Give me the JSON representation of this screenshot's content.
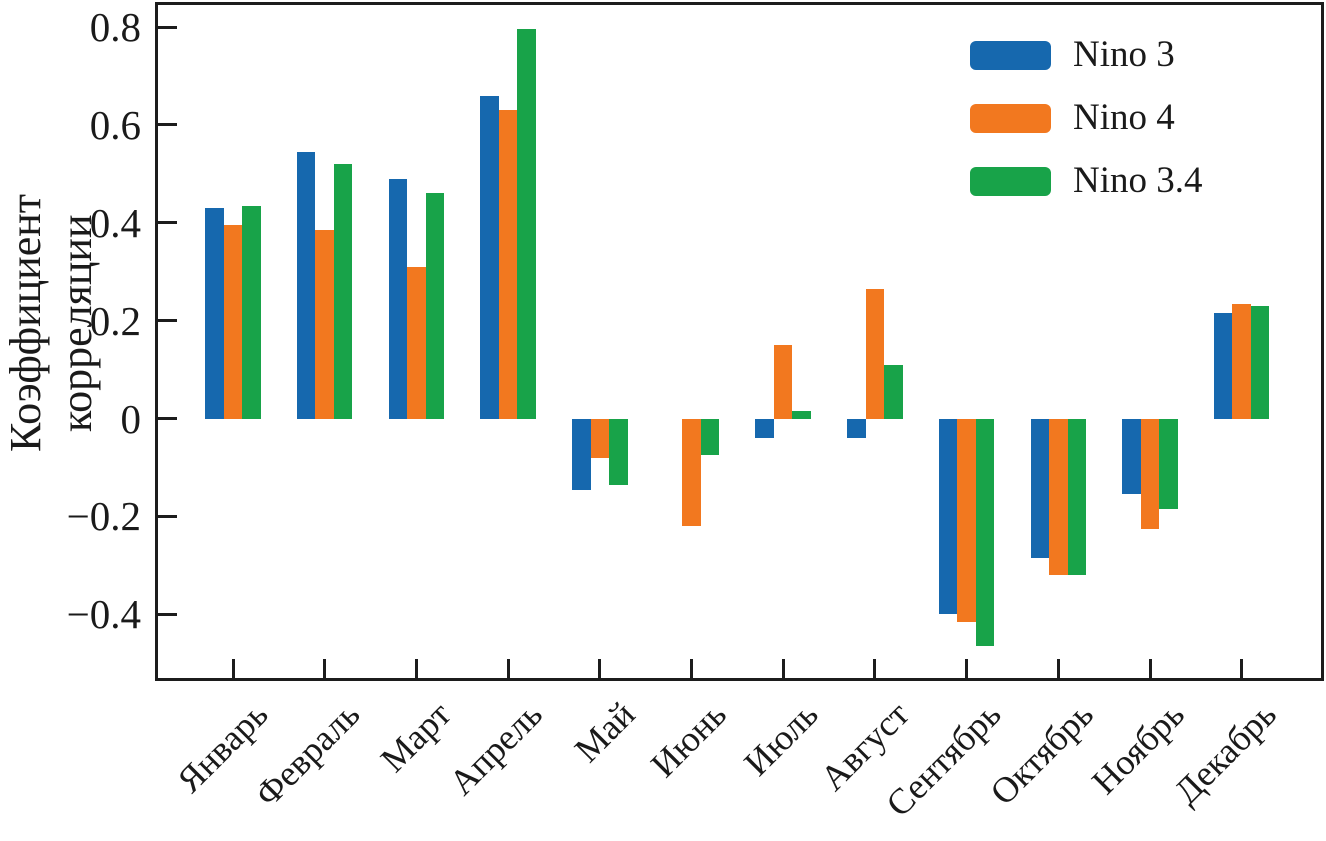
{
  "chart_data": {
    "type": "bar",
    "title": "",
    "ylabel": "Коэффициент корреляции",
    "xlabel": "",
    "categories": [
      "Январь",
      "Февраль",
      "Март",
      "Апрель",
      "Май",
      "Июнь",
      "Июль",
      "Август",
      "Сентябрь",
      "Октябрь",
      "Ноябрь",
      "Декабрь"
    ],
    "series": [
      {
        "name": "Nino 3",
        "color": "#1668ae",
        "values": [
          0.43,
          0.545,
          0.49,
          0.66,
          -0.145,
          0.0,
          -0.04,
          -0.04,
          -0.4,
          -0.285,
          -0.155,
          0.215
        ]
      },
      {
        "name": "Nino 4",
        "color": "#f2781f",
        "values": [
          0.395,
          0.385,
          0.31,
          0.63,
          -0.08,
          -0.22,
          0.15,
          0.265,
          -0.415,
          -0.32,
          -0.225,
          0.235
        ]
      },
      {
        "name": "Nino 3.4",
        "color": "#18a349",
        "values": [
          0.435,
          0.52,
          0.46,
          0.795,
          -0.135,
          -0.075,
          0.015,
          0.11,
          -0.465,
          -0.32,
          -0.185,
          0.23
        ]
      }
    ],
    "ylim": [
      -0.53,
      0.845
    ],
    "yticks": [
      0.8,
      0.6,
      0.4,
      0.2,
      0,
      -0.2,
      -0.4
    ],
    "ytick_labels": [
      "0.8",
      "0.6",
      "0.4",
      "0.2",
      "0",
      "−0.2",
      "−0.4"
    ],
    "legend_position": "top-right",
    "grid": false,
    "frame_color": "#1c1c1c",
    "background_color": "#ffffff"
  }
}
